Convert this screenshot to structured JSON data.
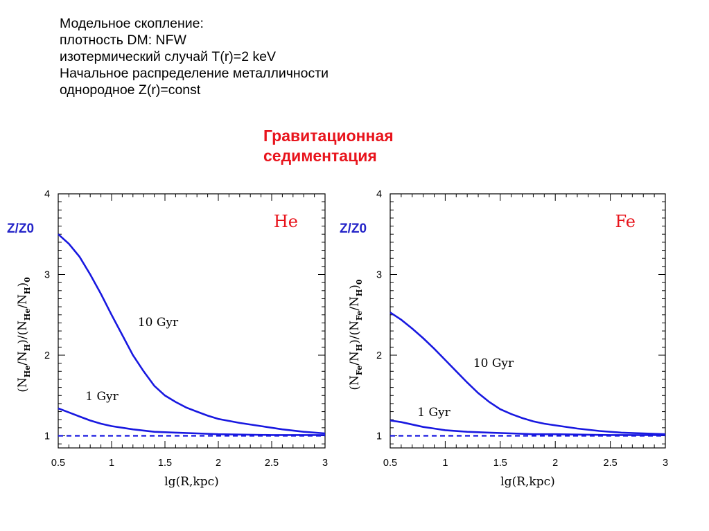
{
  "intro_lines": [
    "Модельное скопление:",
    "плотность DM: NFW",
    "изотермический случай T(r)=2 keV",
    "Начальное распределение металличности",
    "однородное Z(r)=const"
  ],
  "title_lines": [
    "Гравитационная",
    "седиментация"
  ],
  "colors": {
    "curve": "#1818e0",
    "title": "#e8141c",
    "zlabel": "#2424c8",
    "element": "#e8141c"
  },
  "chart_data": [
    {
      "type": "line",
      "element_label": "He",
      "z_label": "Z/Z0",
      "xlabel": "lg(R,kpc)",
      "ylabel": {
        "prefix": "(N",
        "sub1": "He",
        "mid1": "/N",
        "sub2": "H",
        "mid2": ")/(N",
        "sub3": "He",
        "mid3": "/N",
        "sub4": "H",
        "mid4": ")",
        "sub5": "0"
      },
      "xlim": [
        0.5,
        3
      ],
      "ylim": [
        0.85,
        4
      ],
      "x_ticks": [
        "0.5",
        "1",
        "1.5",
        "2",
        "2.5",
        "3"
      ],
      "y_ticks": [
        "1",
        "2",
        "3",
        "4"
      ],
      "series": [
        {
          "name": "10 Gyr",
          "x": [
            0.5,
            0.6,
            0.7,
            0.8,
            0.9,
            1.0,
            1.1,
            1.2,
            1.3,
            1.4,
            1.5,
            1.6,
            1.7,
            1.8,
            1.9,
            2.0,
            2.2,
            2.4,
            2.6,
            2.8,
            3.0
          ],
          "y": [
            3.5,
            3.38,
            3.22,
            3.0,
            2.76,
            2.5,
            2.25,
            2.0,
            1.8,
            1.62,
            1.5,
            1.42,
            1.35,
            1.3,
            1.25,
            1.21,
            1.16,
            1.12,
            1.08,
            1.05,
            1.03
          ]
        },
        {
          "name": "1 Gyr",
          "x": [
            0.5,
            0.6,
            0.7,
            0.8,
            0.9,
            1.0,
            1.2,
            1.4,
            1.6,
            1.8,
            2.0,
            2.5,
            3.0
          ],
          "y": [
            1.34,
            1.29,
            1.24,
            1.19,
            1.15,
            1.12,
            1.08,
            1.05,
            1.04,
            1.03,
            1.02,
            1.01,
            1.01
          ]
        },
        {
          "name": "",
          "style": "dashed",
          "x": [
            0.5,
            3.0
          ],
          "y": [
            1.0,
            1.0
          ]
        }
      ]
    },
    {
      "type": "line",
      "element_label": "Fe",
      "z_label": "Z/Z0",
      "xlabel": "lg(R,kpc)",
      "ylabel": {
        "prefix": "(N",
        "sub1": "Fe",
        "mid1": "/N",
        "sub2": "H",
        "mid2": ")/(N",
        "sub3": "Fe",
        "mid3": "/N",
        "sub4": "H",
        "mid4": ")",
        "sub5": "0"
      },
      "xlim": [
        0.5,
        3
      ],
      "ylim": [
        0.85,
        4
      ],
      "x_ticks": [
        "0.5",
        "1",
        "1.5",
        "2",
        "2.5",
        "3"
      ],
      "y_ticks": [
        "1",
        "2",
        "3",
        "4"
      ],
      "series": [
        {
          "name": "10 Gyr",
          "x": [
            0.5,
            0.6,
            0.7,
            0.8,
            0.9,
            1.0,
            1.1,
            1.2,
            1.3,
            1.4,
            1.5,
            1.6,
            1.7,
            1.8,
            1.9,
            2.0,
            2.2,
            2.4,
            2.6,
            2.8,
            3.0
          ],
          "y": [
            2.53,
            2.44,
            2.33,
            2.21,
            2.08,
            1.94,
            1.8,
            1.66,
            1.53,
            1.42,
            1.33,
            1.27,
            1.22,
            1.18,
            1.15,
            1.13,
            1.09,
            1.06,
            1.04,
            1.03,
            1.02
          ]
        },
        {
          "name": "1 Gyr",
          "x": [
            0.5,
            0.6,
            0.7,
            0.8,
            0.9,
            1.0,
            1.2,
            1.4,
            1.6,
            1.8,
            2.0,
            2.5,
            3.0
          ],
          "y": [
            1.19,
            1.17,
            1.14,
            1.11,
            1.09,
            1.07,
            1.05,
            1.04,
            1.03,
            1.02,
            1.02,
            1.01,
            1.01
          ]
        },
        {
          "name": "",
          "style": "dashed",
          "x": [
            0.5,
            3.0
          ],
          "y": [
            1.0,
            1.0
          ]
        }
      ]
    }
  ]
}
